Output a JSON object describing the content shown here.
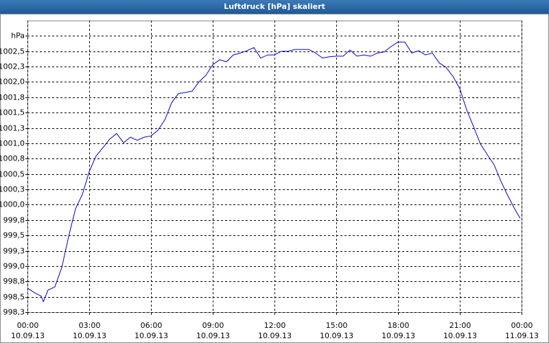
{
  "chart_data": {
    "type": "line",
    "title": "Luftdruck [hPa] skaliert",
    "x": [
      0,
      0.33,
      0.67,
      0.77,
      1,
      1.33,
      1.67,
      2,
      2.33,
      2.67,
      3,
      3.33,
      3.67,
      4,
      4.33,
      4.67,
      5,
      5.33,
      5.67,
      6,
      6.33,
      6.67,
      7,
      7.33,
      7.67,
      8,
      8.33,
      8.67,
      9,
      9.33,
      9.67,
      10,
      10.33,
      10.67,
      11,
      11.33,
      11.67,
      12,
      12.33,
      12.67,
      13,
      13.33,
      13.67,
      14,
      14.33,
      14.67,
      15,
      15.33,
      15.67,
      16,
      16.33,
      16.67,
      17,
      17.33,
      17.67,
      18,
      18.33,
      18.67,
      19,
      19.33,
      19.67,
      20,
      20.33,
      20.67,
      21,
      21.33,
      21.67,
      22,
      22.33,
      22.67,
      23,
      23.33,
      23.67,
      23.93
    ],
    "series": [
      {
        "color": "#0000cc",
        "values": [
          998.64,
          998.57,
          998.51,
          998.42,
          998.61,
          998.66,
          998.98,
          999.48,
          999.93,
          1000.17,
          1000.54,
          1000.79,
          1000.93,
          1001.07,
          1001.16,
          1001.01,
          1001.1,
          1001.05,
          1001.1,
          1001.12,
          1001.21,
          1001.38,
          1001.66,
          1001.81,
          1001.83,
          1001.85,
          1002.0,
          1002.11,
          1002.28,
          1002.36,
          1002.33,
          1002.44,
          1002.47,
          1002.51,
          1002.56,
          1002.39,
          1002.44,
          1002.44,
          1002.5,
          1002.5,
          1002.53,
          1002.53,
          1002.53,
          1002.47,
          1002.39,
          1002.41,
          1002.42,
          1002.42,
          1002.52,
          1002.42,
          1002.44,
          1002.42,
          1002.47,
          1002.49,
          1002.58,
          1002.65,
          1002.65,
          1002.47,
          1002.51,
          1002.44,
          1002.47,
          1002.31,
          1002.24,
          1002.09,
          1001.89,
          1001.55,
          1001.27,
          1000.99,
          1000.82,
          1000.65,
          1000.38,
          1000.15,
          999.93,
          999.78
        ]
      }
    ],
    "xlim": [
      0,
      24
    ],
    "xticks": [
      {
        "value": 0,
        "label": "00:00"
      },
      {
        "value": 3,
        "label": "03:00"
      },
      {
        "value": 6,
        "label": "06:00"
      },
      {
        "value": 9,
        "label": "09:00"
      },
      {
        "value": 12,
        "label": "12:00"
      },
      {
        "value": 15,
        "label": "15:00"
      },
      {
        "value": 18,
        "label": "18:00"
      },
      {
        "value": 21,
        "label": "21:00"
      },
      {
        "value": 24,
        "label": "00:00"
      }
    ],
    "xtick_dates": [
      "10.09.13",
      "10.09.13",
      "10.09.13",
      "10.09.13",
      "10.09.13",
      "10.09.13",
      "10.09.13",
      "10.09.13",
      "11.09.13"
    ],
    "ylim": [
      998.25,
      1003.0
    ],
    "yticks": [
      {
        "value": 998.25,
        "label": "998,3"
      },
      {
        "value": 998.5,
        "label": "998,5"
      },
      {
        "value": 998.75,
        "label": "998,8"
      },
      {
        "value": 999,
        "label": "999,0"
      },
      {
        "value": 999.25,
        "label": "999,3"
      },
      {
        "value": 999.5,
        "label": "999,5"
      },
      {
        "value": 999.75,
        "label": "999,8"
      },
      {
        "value": 1000,
        "label": "1000,0"
      },
      {
        "value": 1000.25,
        "label": "1000,3"
      },
      {
        "value": 1000.5,
        "label": "1000,5"
      },
      {
        "value": 1000.75,
        "label": "1000,8"
      },
      {
        "value": 1001,
        "label": "1001,0"
      },
      {
        "value": 1001.25,
        "label": "1001,3"
      },
      {
        "value": 1001.5,
        "label": "1001,5"
      },
      {
        "value": 1001.75,
        "label": "1001,8"
      },
      {
        "value": 1002,
        "label": "1002,0"
      },
      {
        "value": 1002.25,
        "label": "1002,3"
      },
      {
        "value": 1002.5,
        "label": "1002,5"
      },
      {
        "value": 1002.75,
        "label": "hPa"
      }
    ],
    "grid": true
  }
}
